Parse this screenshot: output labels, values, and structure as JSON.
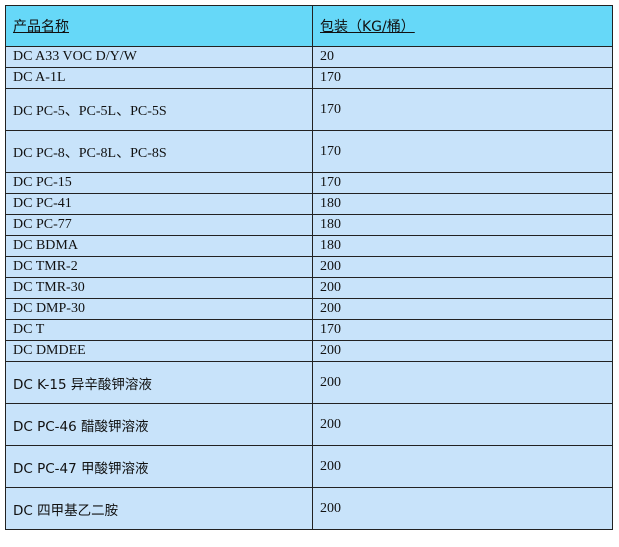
{
  "header": {
    "col1": "产品名称",
    "col2": "包装（KG/桶）"
  },
  "rows": [
    {
      "name": "DC A33 VOC D/Y/W",
      "pack": "20",
      "tall": false
    },
    {
      "name": "DC A-1L",
      "pack": "170",
      "tall": false
    },
    {
      "name": "DC PC-5、PC-5L、PC-5S",
      "pack": "170",
      "tall": true
    },
    {
      "name": "DC PC-8、PC-8L、PC-8S",
      "pack": "170",
      "tall": true
    },
    {
      "name": "DC PC-15",
      "pack": "170",
      "tall": false
    },
    {
      "name": "DC PC-41",
      "pack": "180",
      "tall": false
    },
    {
      "name": "DC PC-77",
      "pack": "180",
      "tall": false
    },
    {
      "name": "DC BDMA",
      "pack": "180",
      "tall": false
    },
    {
      "name": "DC TMR-2",
      "pack": "200",
      "tall": false
    },
    {
      "name": "DC TMR-30",
      "pack": "200",
      "tall": false
    },
    {
      "name": "DC DMP-30",
      "pack": "200",
      "tall": false
    },
    {
      "name": "DC T",
      "pack": "170",
      "tall": false
    },
    {
      "name": "DC DMDEE",
      "pack": "200",
      "tall": false
    },
    {
      "name": "DC K-15 异辛酸钾溶液",
      "pack": "200",
      "tall": true
    },
    {
      "name": "DC PC-46 醋酸钾溶液",
      "pack": "200",
      "tall": true
    },
    {
      "name": "DC PC-47 甲酸钾溶液",
      "pack": "200",
      "tall": true
    },
    {
      "name": "DC  四甲基乙二胺",
      "pack": "200",
      "tall": true
    }
  ]
}
